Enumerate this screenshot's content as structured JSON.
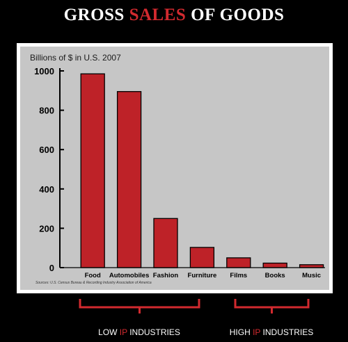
{
  "title": {
    "part1": "GROSS ",
    "part2": "SALES",
    "part3": " OF GOODS"
  },
  "colors": {
    "bar": "#be2228",
    "accent": "#d22a2f",
    "background": "#000000",
    "panel": "#c6c6c6"
  },
  "chart_data": {
    "type": "bar",
    "title": "GROSS SALES OF GOODS",
    "ylabel": "Billions of $ in U.S. 2007",
    "xlabel": "",
    "categories": [
      "Food",
      "Automobiles",
      "Fashion",
      "Furniture",
      "Films",
      "Books",
      "Music"
    ],
    "values": [
      985,
      895,
      250,
      103,
      50,
      23,
      15
    ],
    "ylim": [
      0,
      1000
    ],
    "yticks": [
      "1000",
      "800",
      "600",
      "400",
      "200",
      "0"
    ],
    "yticks_values": [
      1000,
      800,
      600,
      400,
      200,
      0
    ],
    "grid": false,
    "source": "Sources: U.S. Census Bureau & Recording Industry Association of America",
    "groups": [
      {
        "label_before": "LOW ",
        "label_accent": "IP",
        "label_after": " INDUSTRIES",
        "categories": [
          "Food",
          "Automobiles",
          "Fashion",
          "Furniture"
        ]
      },
      {
        "label_before": "HIGH ",
        "label_accent": "IP",
        "label_after": " INDUSTRIES",
        "categories": [
          "Films",
          "Books",
          "Music"
        ]
      }
    ]
  }
}
